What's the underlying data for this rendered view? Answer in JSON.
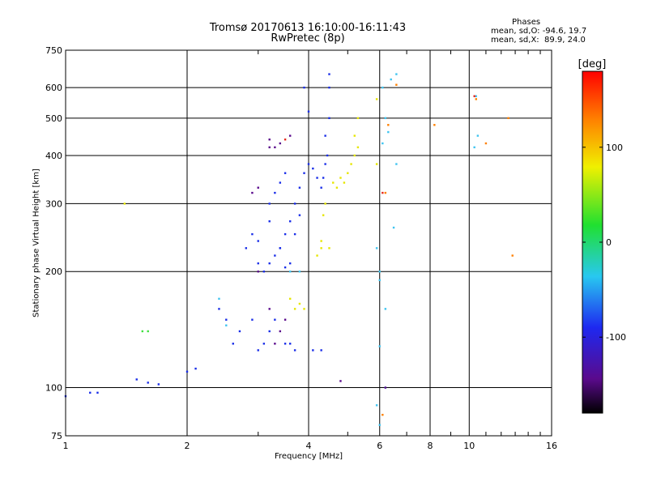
{
  "header": {
    "title_line1": "Tromsø 20170613 16:10:00-16:11:43",
    "title_line2": "RwPretec (8p)"
  },
  "phases": {
    "title": "Phases",
    "o_stats": "mean, sd,O: -94.6, 19.7",
    "x_stats": "mean, sd,X:  89.9, 24.0"
  },
  "chart_data": {
    "type": "scatter",
    "xlabel": "Frequency [MHz]",
    "ylabel": "Stationary phase Virtual Height [km]",
    "x_scale": "log",
    "y_scale": "log",
    "xlim": [
      1,
      16
    ],
    "ylim": [
      75,
      750
    ],
    "x_ticks": [
      1,
      2,
      4,
      6,
      8,
      10,
      16
    ],
    "y_ticks": [
      75,
      100,
      200,
      300,
      400,
      500,
      600,
      750
    ],
    "grid": true,
    "colorbar": {
      "label": "[deg]",
      "range": [
        -180,
        180
      ],
      "ticks": [
        -100,
        0,
        100
      ],
      "colormap": "rainbow (black-purple-blue-cyan-green-yellow-red)"
    },
    "series": [
      {
        "color": "#1a2ee8",
        "points": [
          [
            4.5,
            650
          ],
          [
            4.5,
            600
          ],
          [
            4.5,
            500
          ],
          [
            4.4,
            450
          ],
          [
            4.45,
            400
          ],
          [
            4.4,
            380
          ],
          [
            4.35,
            350
          ],
          [
            4.3,
            330
          ],
          [
            4.2,
            350
          ],
          [
            4.1,
            370
          ],
          [
            4.0,
            380
          ],
          [
            3.9,
            360
          ],
          [
            3.8,
            330
          ],
          [
            3.7,
            300
          ],
          [
            3.6,
            270
          ],
          [
            3.5,
            250
          ],
          [
            3.4,
            230
          ],
          [
            3.3,
            220
          ],
          [
            3.2,
            210
          ],
          [
            3.1,
            200
          ],
          [
            3.0,
            210
          ],
          [
            3.6,
            210
          ],
          [
            3.5,
            205
          ],
          [
            3.4,
            230
          ],
          [
            3.7,
            250
          ],
          [
            3.8,
            280
          ],
          [
            3.5,
            360
          ],
          [
            3.4,
            340
          ],
          [
            3.3,
            320
          ],
          [
            3.2,
            300
          ],
          [
            3.2,
            270
          ],
          [
            2.8,
            230
          ],
          [
            2.9,
            250
          ],
          [
            3.0,
            240
          ],
          [
            3.3,
            150
          ],
          [
            3.2,
            140
          ],
          [
            3.1,
            130
          ],
          [
            3.0,
            125
          ],
          [
            3.5,
            130
          ],
          [
            3.6,
            130
          ],
          [
            3.7,
            125
          ],
          [
            4.1,
            125
          ],
          [
            4.3,
            125
          ],
          [
            2.4,
            160
          ],
          [
            2.5,
            150
          ],
          [
            2.7,
            140
          ],
          [
            2.9,
            150
          ],
          [
            2.6,
            130
          ],
          [
            2.0,
            110
          ],
          [
            2.1,
            112
          ],
          [
            1.6,
            103
          ],
          [
            1.7,
            102
          ],
          [
            1.5,
            105
          ],
          [
            1.0,
            95
          ],
          [
            1.15,
            97
          ],
          [
            1.2,
            97
          ],
          [
            3.9,
            600
          ],
          [
            4.0,
            520
          ]
        ]
      },
      {
        "color": "#e6e600",
        "points": [
          [
            4.3,
            240
          ],
          [
            4.3,
            230
          ],
          [
            4.5,
            230
          ],
          [
            4.35,
            280
          ],
          [
            4.4,
            300
          ],
          [
            4.6,
            340
          ],
          [
            4.7,
            330
          ],
          [
            4.8,
            350
          ],
          [
            4.9,
            340
          ],
          [
            5.0,
            360
          ],
          [
            5.1,
            380
          ],
          [
            5.2,
            400
          ],
          [
            5.3,
            420
          ],
          [
            5.3,
            500
          ],
          [
            5.2,
            450
          ],
          [
            3.6,
            170
          ],
          [
            3.7,
            160
          ],
          [
            3.8,
            165
          ],
          [
            3.9,
            160
          ],
          [
            4.2,
            220
          ],
          [
            1.4,
            300
          ],
          [
            5.9,
            380
          ],
          [
            5.9,
            560
          ]
        ]
      },
      {
        "color": "#3fc4f0",
        "points": [
          [
            3.6,
            200
          ],
          [
            3.8,
            200
          ],
          [
            2.4,
            170
          ],
          [
            2.5,
            145
          ],
          [
            6.0,
            200
          ],
          [
            6.0,
            128
          ],
          [
            6.2,
            100
          ],
          [
            5.9,
            90
          ],
          [
            6.0,
            80
          ],
          [
            6.1,
            600
          ],
          [
            6.2,
            500
          ],
          [
            6.3,
            460
          ],
          [
            6.1,
            430
          ],
          [
            6.0,
            190
          ],
          [
            6.2,
            160
          ],
          [
            6.4,
            630
          ],
          [
            6.6,
            650
          ],
          [
            6.6,
            380
          ],
          [
            6.5,
            260
          ],
          [
            5.9,
            230
          ],
          [
            10.4,
            570
          ],
          [
            10.5,
            450
          ],
          [
            10.3,
            420
          ]
        ]
      },
      {
        "color": "#ff8000",
        "points": [
          [
            6.6,
            610
          ],
          [
            6.3,
            480
          ],
          [
            6.2,
            320
          ],
          [
            8.2,
            480
          ],
          [
            10.4,
            560
          ],
          [
            11.0,
            430
          ],
          [
            12.5,
            500
          ],
          [
            12.8,
            220
          ],
          [
            6.1,
            85
          ]
        ]
      },
      {
        "color": "#e6281e",
        "points": [
          [
            10.3,
            570
          ],
          [
            6.1,
            320
          ],
          [
            3.5,
            440
          ]
        ]
      },
      {
        "color": "#5a0a8c",
        "points": [
          [
            3.2,
            440
          ],
          [
            3.4,
            430
          ],
          [
            3.3,
            420
          ],
          [
            3.0,
            330
          ],
          [
            3.2,
            420
          ],
          [
            3.6,
            450
          ],
          [
            2.9,
            320
          ],
          [
            3.0,
            200
          ],
          [
            3.4,
            140
          ],
          [
            3.3,
            130
          ],
          [
            3.5,
            150
          ],
          [
            3.2,
            160
          ],
          [
            6.2,
            100
          ],
          [
            4.8,
            104
          ]
        ]
      },
      {
        "color": "#40e040",
        "points": [
          [
            1.6,
            140
          ],
          [
            1.55,
            140
          ]
        ]
      }
    ]
  }
}
